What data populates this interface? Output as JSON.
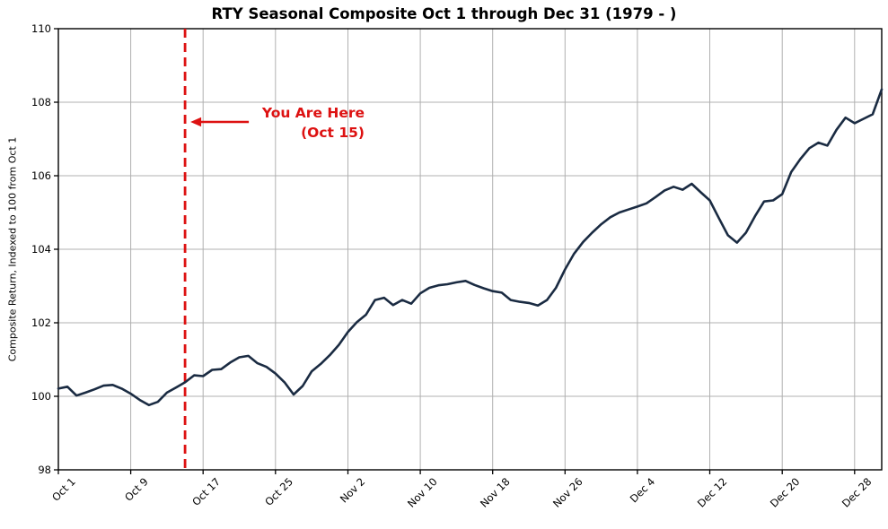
{
  "title": "RTY Seasonal Composite Oct 1 through Dec 31 (1979 - )",
  "y_axis": {
    "label": "Composite Return, Indexed to 100 from Oct 1",
    "ticks": [
      98,
      100,
      102,
      104,
      106,
      108,
      110
    ]
  },
  "x_axis": {
    "tick_labels": [
      "Oct 1",
      "Oct 9",
      "Oct 17",
      "Oct 25",
      "Nov 2",
      "Nov 10",
      "Nov 18",
      "Nov 26",
      "Dec 4",
      "Dec 12",
      "Dec 20",
      "Dec 28"
    ],
    "tick_days": [
      0,
      8,
      16,
      24,
      32,
      40,
      48,
      56,
      64,
      72,
      80,
      88
    ]
  },
  "annotation": {
    "line1": "You Are Here",
    "line2": "(Oct 15)",
    "marker_day": 14
  },
  "colors": {
    "line": "#1a2b42",
    "grid": "#b0b0b0",
    "spine": "#000000",
    "background": "#ffffff",
    "annotation": "#dd1111"
  },
  "chart_data": {
    "type": "line",
    "title": "RTY Seasonal Composite Oct 1 through Dec 31 (1979 - )",
    "xlabel": "",
    "ylabel": "Composite Return, Indexed to 100 from Oct 1",
    "ylim": [
      98,
      110
    ],
    "grid": true,
    "x_unit": "days since Oct 1 (0 = Oct 1, 91 = Dec 31)",
    "total_days": 91,
    "x_tick_dates": [
      "Oct 1",
      "Oct 9",
      "Oct 17",
      "Oct 25",
      "Nov 2",
      "Nov 10",
      "Nov 18",
      "Nov 26",
      "Dec 4",
      "Dec 12",
      "Dec 20",
      "Dec 28"
    ],
    "vline": {
      "day_index": 14,
      "date": "Oct 15",
      "label": "You Are Here (Oct 15)",
      "style": "dashed-red"
    },
    "values": [
      100.21,
      100.26,
      100.02,
      100.1,
      100.19,
      100.29,
      100.31,
      100.21,
      100.07,
      99.9,
      99.76,
      99.85,
      100.1,
      100.24,
      100.38,
      100.57,
      100.55,
      100.72,
      100.74,
      100.92,
      101.06,
      101.1,
      100.9,
      100.8,
      100.62,
      100.38,
      100.05,
      100.28,
      100.68,
      100.88,
      101.12,
      101.4,
      101.75,
      102.02,
      102.22,
      102.62,
      102.68,
      102.48,
      102.62,
      102.52,
      102.8,
      102.95,
      103.02,
      103.05,
      103.1,
      103.14,
      103.03,
      102.94,
      102.86,
      102.82,
      102.62,
      102.57,
      102.54,
      102.47,
      102.62,
      102.95,
      103.45,
      103.88,
      104.2,
      104.45,
      104.68,
      104.87,
      105.0,
      105.08,
      105.16,
      105.25,
      105.42,
      105.6,
      105.7,
      105.62,
      105.78,
      105.55,
      105.33,
      104.85,
      104.38,
      104.18,
      104.45,
      104.9,
      105.3,
      105.33,
      105.5,
      106.1,
      106.45,
      106.75,
      106.9,
      106.82,
      107.25,
      107.58,
      107.43,
      107.55,
      107.67,
      108.35
    ]
  }
}
